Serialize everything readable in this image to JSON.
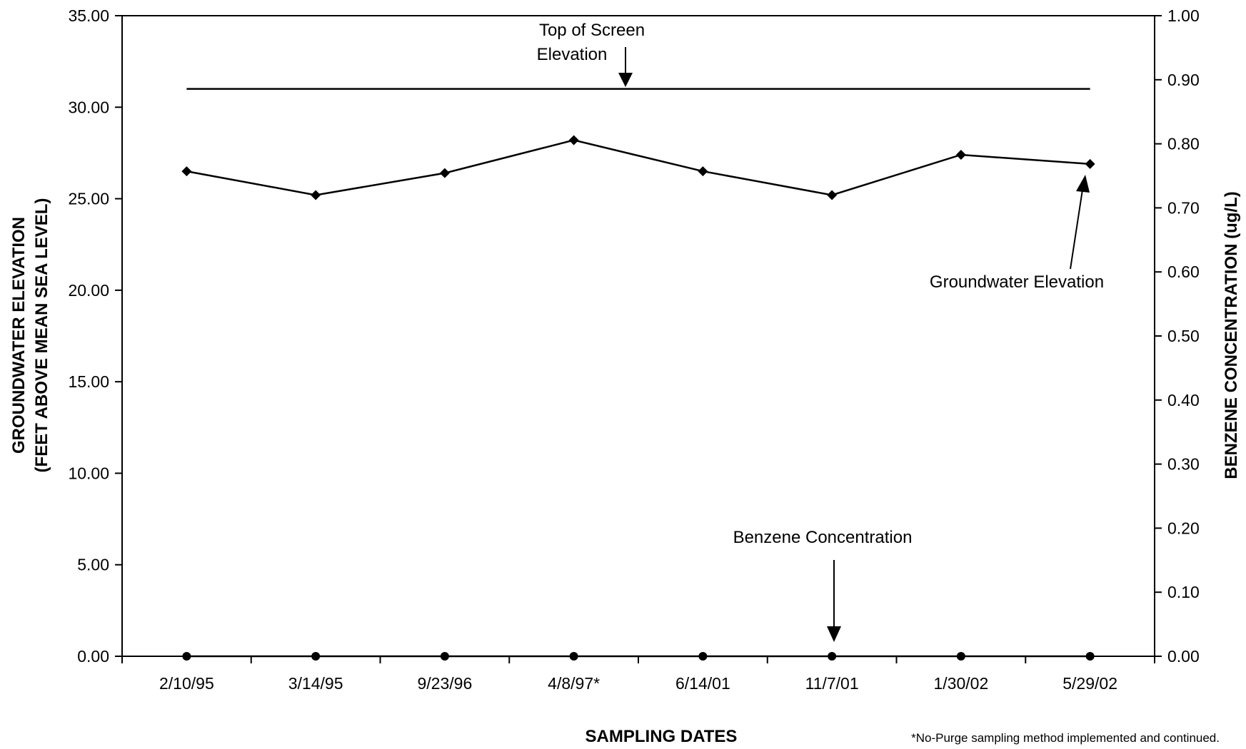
{
  "chart_data": {
    "type": "line",
    "categories": [
      "2/10/95",
      "3/14/95",
      "9/23/96",
      "4/8/97*",
      "6/14/01",
      "11/7/01",
      "1/30/02",
      "5/29/02"
    ],
    "xlabel": "SAMPLING DATES",
    "ylabel_left_line1": "GROUNDWATER ELEVATION",
    "ylabel_left_line2": "(FEET ABOVE MEAN SEA LEVEL)",
    "ylabel_right": "BENZENE CONCENTRATION (ug/L)",
    "ylim_left": [
      0,
      35
    ],
    "ylim_right": [
      0,
      1
    ],
    "yticks_left": [
      "0.00",
      "5.00",
      "10.00",
      "15.00",
      "20.00",
      "25.00",
      "30.00",
      "35.00"
    ],
    "yticks_right": [
      "0.00",
      "0.10",
      "0.20",
      "0.30",
      "0.40",
      "0.50",
      "0.60",
      "0.70",
      "0.80",
      "0.90",
      "1.00"
    ],
    "grid": false,
    "series": [
      {
        "name": "Top of Screen Elevation",
        "axis": "left",
        "marker": "none",
        "values": [
          31.0,
          31.0,
          31.0,
          31.0,
          31.0,
          31.0,
          31.0,
          31.0
        ]
      },
      {
        "name": "Groundwater Elevation",
        "axis": "left",
        "marker": "diamond",
        "values": [
          26.5,
          25.2,
          26.4,
          28.2,
          26.5,
          25.2,
          27.4,
          26.9
        ]
      },
      {
        "name": "Benzene Concentration",
        "axis": "right",
        "marker": "circle",
        "values": [
          0.0,
          0.0,
          0.0,
          0.0,
          0.0,
          0.0,
          0.0,
          0.0
        ]
      }
    ],
    "annotations": {
      "top_screen_line1": "Top of Screen",
      "top_screen_line2": "Elevation",
      "groundwater": "Groundwater Elevation",
      "benzene": "Benzene Concentration"
    },
    "footnote": "*No-Purge sampling method implemented and continued."
  }
}
